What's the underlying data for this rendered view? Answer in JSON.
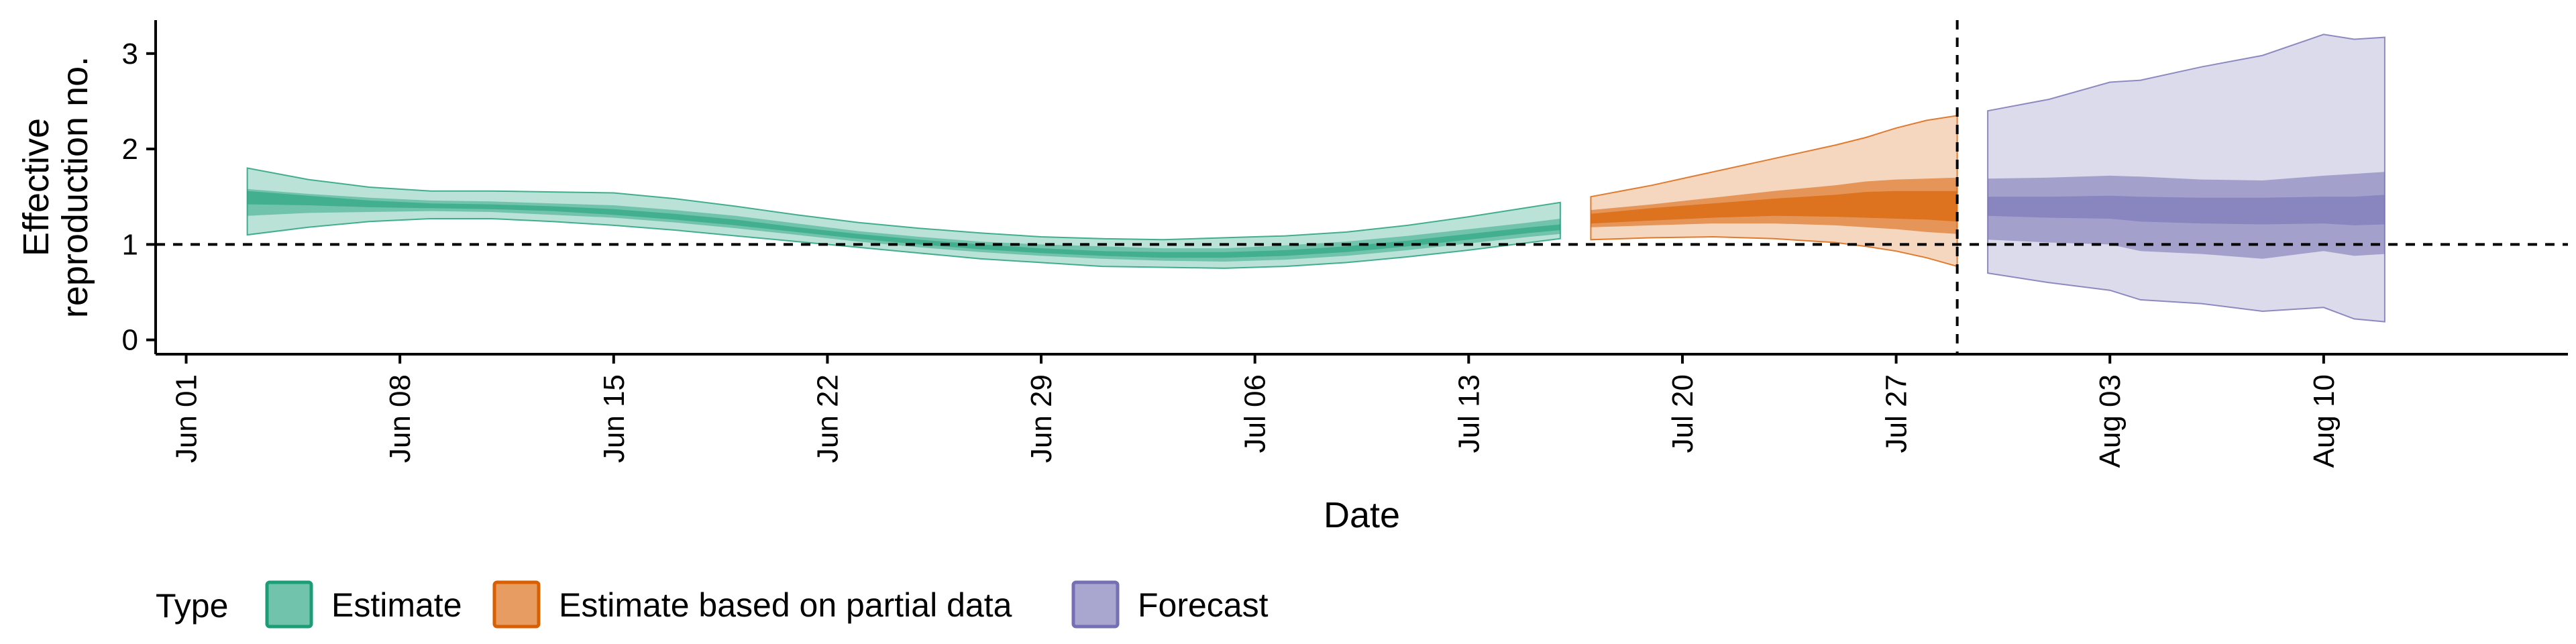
{
  "chart_data": {
    "type": "area",
    "xlabel": "Date",
    "ylabel": "Effective\nreproduction no.",
    "x_start_date": "2020-05-31",
    "xlim": [
      "2020-05-31",
      "2020-08-18"
    ],
    "ylim": [
      -0.15,
      3.35
    ],
    "y_ticks": [
      0,
      1,
      2,
      3
    ],
    "x_ticks": [
      {
        "date": "2020-06-01",
        "label": "Jun 01"
      },
      {
        "date": "2020-06-08",
        "label": "Jun 08"
      },
      {
        "date": "2020-06-15",
        "label": "Jun 15"
      },
      {
        "date": "2020-06-22",
        "label": "Jun 22"
      },
      {
        "date": "2020-06-29",
        "label": "Jun 29"
      },
      {
        "date": "2020-07-06",
        "label": "Jul 06"
      },
      {
        "date": "2020-07-13",
        "label": "Jul 13"
      },
      {
        "date": "2020-07-20",
        "label": "Jul 20"
      },
      {
        "date": "2020-07-27",
        "label": "Jul 27"
      },
      {
        "date": "2020-08-03",
        "label": "Aug 03"
      },
      {
        "date": "2020-08-10",
        "label": "Aug 10"
      }
    ],
    "reference_lines": {
      "horizontal_y": 1,
      "vertical_date": "2020-07-29"
    },
    "legend": {
      "title": "Type",
      "position": "bottom",
      "items": [
        {
          "label": "Estimate",
          "fill": "#1b9e77",
          "border": "#1b9e77"
        },
        {
          "label": "Estimate based on partial data",
          "fill": "#d95f02",
          "border": "#d95f02"
        },
        {
          "label": "Forecast",
          "fill": "#7570b3",
          "border": "#7570b3"
        }
      ]
    },
    "series": [
      {
        "name": "Estimate",
        "color": "#1b9e77",
        "outer_band_opacity": 0.3,
        "inner_band_opacity": 0.45,
        "median_opacity": 0.55,
        "points": [
          {
            "date": "2020-06-03",
            "lower90": 1.1,
            "lower50": 1.3,
            "lower20": 1.42,
            "upper20": 1.56,
            "upper50": 1.58,
            "upper90": 1.8
          },
          {
            "date": "2020-06-05",
            "lower90": 1.18,
            "lower50": 1.33,
            "lower20": 1.41,
            "upper20": 1.51,
            "upper50": 1.53,
            "upper90": 1.68
          },
          {
            "date": "2020-06-07",
            "lower90": 1.24,
            "lower50": 1.34,
            "lower20": 1.39,
            "upper20": 1.46,
            "upper50": 1.49,
            "upper90": 1.6
          },
          {
            "date": "2020-06-09",
            "lower90": 1.27,
            "lower50": 1.35,
            "lower20": 1.38,
            "upper20": 1.43,
            "upper50": 1.46,
            "upper90": 1.56
          },
          {
            "date": "2020-06-11",
            "lower90": 1.27,
            "lower50": 1.34,
            "lower20": 1.37,
            "upper20": 1.42,
            "upper50": 1.45,
            "upper90": 1.56
          },
          {
            "date": "2020-06-13",
            "lower90": 1.24,
            "lower50": 1.31,
            "lower20": 1.35,
            "upper20": 1.4,
            "upper50": 1.43,
            "upper90": 1.55
          },
          {
            "date": "2020-06-15",
            "lower90": 1.2,
            "lower50": 1.28,
            "lower20": 1.31,
            "upper20": 1.37,
            "upper50": 1.41,
            "upper90": 1.54
          },
          {
            "date": "2020-06-17",
            "lower90": 1.15,
            "lower50": 1.23,
            "lower20": 1.26,
            "upper20": 1.32,
            "upper50": 1.36,
            "upper90": 1.48
          },
          {
            "date": "2020-06-19",
            "lower90": 1.09,
            "lower50": 1.17,
            "lower20": 1.2,
            "upper20": 1.26,
            "upper50": 1.3,
            "upper90": 1.4
          },
          {
            "date": "2020-06-21",
            "lower90": 1.03,
            "lower50": 1.1,
            "lower20": 1.13,
            "upper20": 1.18,
            "upper50": 1.22,
            "upper90": 1.31
          },
          {
            "date": "2020-06-23",
            "lower90": 0.97,
            "lower50": 1.03,
            "lower20": 1.06,
            "upper20": 1.11,
            "upper50": 1.14,
            "upper90": 1.23
          },
          {
            "date": "2020-06-25",
            "lower90": 0.91,
            "lower50": 0.97,
            "lower20": 1.0,
            "upper20": 1.05,
            "upper50": 1.08,
            "upper90": 1.17
          },
          {
            "date": "2020-06-27",
            "lower90": 0.85,
            "lower50": 0.92,
            "lower20": 0.95,
            "upper20": 1.0,
            "upper50": 1.03,
            "upper90": 1.12
          },
          {
            "date": "2020-06-29",
            "lower90": 0.81,
            "lower50": 0.88,
            "lower20": 0.91,
            "upper20": 0.96,
            "upper50": 1.0,
            "upper90": 1.08
          },
          {
            "date": "2020-07-01",
            "lower90": 0.77,
            "lower50": 0.85,
            "lower20": 0.88,
            "upper20": 0.93,
            "upper50": 0.98,
            "upper90": 1.06
          },
          {
            "date": "2020-07-03",
            "lower90": 0.76,
            "lower50": 0.83,
            "lower20": 0.86,
            "upper20": 0.92,
            "upper50": 0.96,
            "upper90": 1.05
          },
          {
            "date": "2020-07-05",
            "lower90": 0.75,
            "lower50": 0.82,
            "lower20": 0.86,
            "upper20": 0.92,
            "upper50": 0.96,
            "upper90": 1.07
          },
          {
            "date": "2020-07-07",
            "lower90": 0.77,
            "lower50": 0.84,
            "lower20": 0.88,
            "upper20": 0.94,
            "upper50": 0.99,
            "upper90": 1.09
          },
          {
            "date": "2020-07-09",
            "lower90": 0.81,
            "lower50": 0.88,
            "lower20": 0.92,
            "upper20": 0.98,
            "upper50": 1.03,
            "upper90": 1.13
          },
          {
            "date": "2020-07-11",
            "lower90": 0.87,
            "lower50": 0.94,
            "lower20": 0.98,
            "upper20": 1.04,
            "upper50": 1.09,
            "upper90": 1.2
          },
          {
            "date": "2020-07-13",
            "lower90": 0.94,
            "lower50": 1.01,
            "lower20": 1.05,
            "upper20": 1.11,
            "upper50": 1.16,
            "upper90": 1.29
          },
          {
            "date": "2020-07-15",
            "lower90": 1.02,
            "lower50": 1.08,
            "lower20": 1.12,
            "upper20": 1.18,
            "upper50": 1.23,
            "upper90": 1.39
          },
          {
            "date": "2020-07-16",
            "lower90": 1.06,
            "lower50": 1.11,
            "lower20": 1.15,
            "upper20": 1.21,
            "upper50": 1.27,
            "upper90": 1.44
          }
        ]
      },
      {
        "name": "Estimate based on partial data",
        "color": "#d95f02",
        "outer_band_opacity": 0.25,
        "inner_band_opacity": 0.55,
        "median_opacity": 0.65,
        "points": [
          {
            "date": "2020-07-17",
            "lower90": 1.05,
            "lower50": 1.18,
            "lower20": 1.22,
            "upper20": 1.32,
            "upper50": 1.36,
            "upper90": 1.5
          },
          {
            "date": "2020-07-19",
            "lower90": 1.07,
            "lower50": 1.2,
            "lower20": 1.25,
            "upper20": 1.38,
            "upper50": 1.42,
            "upper90": 1.62
          },
          {
            "date": "2020-07-21",
            "lower90": 1.08,
            "lower50": 1.22,
            "lower20": 1.28,
            "upper20": 1.43,
            "upper50": 1.49,
            "upper90": 1.76
          },
          {
            "date": "2020-07-23",
            "lower90": 1.06,
            "lower50": 1.22,
            "lower20": 1.3,
            "upper20": 1.48,
            "upper50": 1.56,
            "upper90": 1.9
          },
          {
            "date": "2020-07-25",
            "lower90": 1.02,
            "lower50": 1.2,
            "lower20": 1.29,
            "upper20": 1.52,
            "upper50": 1.62,
            "upper90": 2.04
          },
          {
            "date": "2020-07-26",
            "lower90": 0.98,
            "lower50": 1.18,
            "lower20": 1.28,
            "upper20": 1.55,
            "upper50": 1.66,
            "upper90": 2.12
          },
          {
            "date": "2020-07-27",
            "lower90": 0.93,
            "lower50": 1.16,
            "lower20": 1.27,
            "upper20": 1.56,
            "upper50": 1.68,
            "upper90": 2.22
          },
          {
            "date": "2020-07-28",
            "lower90": 0.86,
            "lower50": 1.13,
            "lower20": 1.26,
            "upper20": 1.56,
            "upper50": 1.69,
            "upper90": 2.3
          },
          {
            "date": "2020-07-29",
            "lower90": 0.77,
            "lower50": 1.11,
            "lower20": 1.24,
            "upper20": 1.56,
            "upper50": 1.7,
            "upper90": 2.35
          }
        ]
      },
      {
        "name": "Forecast",
        "color": "#7570b3",
        "outer_band_opacity": 0.25,
        "inner_band_opacity": 0.55,
        "median_opacity": 0.55,
        "points": [
          {
            "date": "2020-07-30",
            "lower90": 0.7,
            "lower50": 1.05,
            "lower20": 1.3,
            "upper20": 1.5,
            "upper50": 1.69,
            "upper90": 2.4
          },
          {
            "date": "2020-08-01",
            "lower90": 0.6,
            "lower50": 1.02,
            "lower20": 1.28,
            "upper20": 1.5,
            "upper50": 1.7,
            "upper90": 2.52
          },
          {
            "date": "2020-08-03",
            "lower90": 0.52,
            "lower50": 1.0,
            "lower20": 1.27,
            "upper20": 1.51,
            "upper50": 1.72,
            "upper90": 2.7
          },
          {
            "date": "2020-08-04",
            "lower90": 0.42,
            "lower50": 0.93,
            "lower20": 1.24,
            "upper20": 1.5,
            "upper50": 1.71,
            "upper90": 2.72
          },
          {
            "date": "2020-08-06",
            "lower90": 0.38,
            "lower50": 0.9,
            "lower20": 1.22,
            "upper20": 1.49,
            "upper50": 1.68,
            "upper90": 2.86
          },
          {
            "date": "2020-08-08",
            "lower90": 0.3,
            "lower50": 0.85,
            "lower20": 1.21,
            "upper20": 1.49,
            "upper50": 1.67,
            "upper90": 2.98
          },
          {
            "date": "2020-08-10",
            "lower90": 0.34,
            "lower50": 0.93,
            "lower20": 1.22,
            "upper20": 1.5,
            "upper50": 1.72,
            "upper90": 3.2
          },
          {
            "date": "2020-08-11",
            "lower90": 0.22,
            "lower50": 0.88,
            "lower20": 1.2,
            "upper20": 1.5,
            "upper50": 1.74,
            "upper90": 3.15
          },
          {
            "date": "2020-08-12",
            "lower90": 0.19,
            "lower50": 0.9,
            "lower20": 1.21,
            "upper20": 1.52,
            "upper50": 1.76,
            "upper90": 3.17
          }
        ]
      }
    ]
  }
}
